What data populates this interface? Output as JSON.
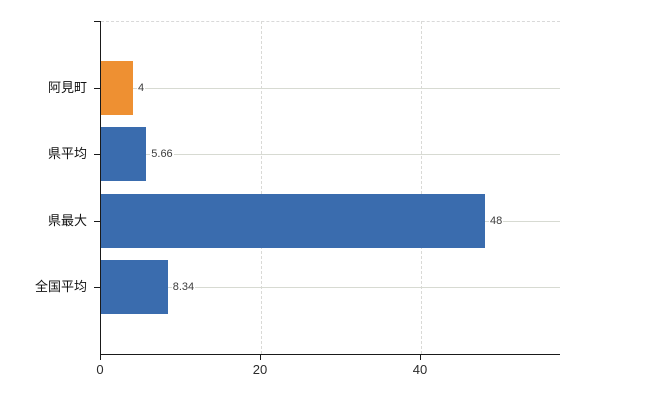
{
  "chart_data": {
    "type": "bar",
    "orientation": "horizontal",
    "title": "",
    "xlabel": "",
    "ylabel": "",
    "categories": [
      "阿見町",
      "県平均",
      "県最大",
      "全国平均"
    ],
    "values": [
      4,
      5.66,
      48,
      8.34
    ],
    "value_labels": [
      "4",
      "5.66",
      "48",
      "8.34"
    ],
    "series": [
      {
        "name": "value",
        "values": [
          4,
          5.66,
          48,
          8.34
        ]
      }
    ],
    "highlight_category": "阿見町",
    "bar_colors": [
      "#ee9032",
      "#3a6cae",
      "#3a6cae",
      "#3a6cae"
    ],
    "xlim": [
      0,
      57.375
    ],
    "x_ticks": [
      0,
      20,
      40
    ],
    "x_tick_labels": [
      "0",
      "20",
      "40"
    ],
    "grid": true,
    "legend": false
  },
  "colors": {
    "highlight_bar": "#ee9032",
    "default_bar": "#3a6cae",
    "gridline": "#d7dad2",
    "dashed_border": "#d9d9d9",
    "axis": "#1a1a1a",
    "value_text": "#3c3c3c",
    "background": "#ffffff"
  }
}
